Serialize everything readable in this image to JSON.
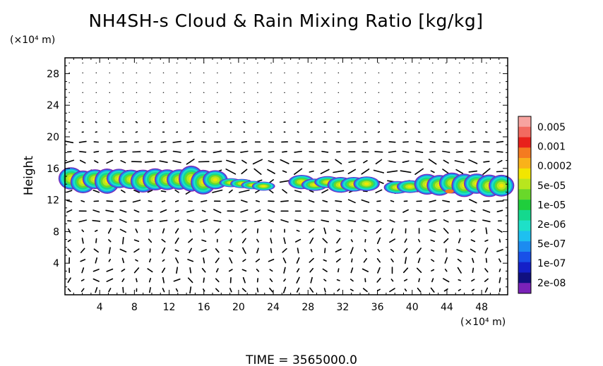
{
  "chart_data": {
    "type": "heatmap",
    "title": "NH4SH-s Cloud & Rain Mixing Ratio [kg/kg]",
    "ylabel": "Height",
    "x_unit": "(×10⁴ m)",
    "y_unit": "(×10⁴ m)",
    "xlim": [
      0,
      51
    ],
    "ylim": [
      0,
      30
    ],
    "x_ticks": [
      "4",
      "8",
      "12",
      "16",
      "20",
      "24",
      "28",
      "32",
      "36",
      "40",
      "44",
      "48"
    ],
    "x_tick_values": [
      4,
      8,
      12,
      16,
      20,
      24,
      28,
      32,
      36,
      40,
      44,
      48
    ],
    "y_ticks": [
      "4",
      "8",
      "12",
      "16",
      "20",
      "24",
      "28"
    ],
    "y_tick_values": [
      4,
      8,
      12,
      16,
      20,
      24,
      28
    ],
    "colorbar": {
      "labels": [
        "0.005",
        "0.001",
        "0.0002",
        "5e-05",
        "1e-05",
        "2e-06",
        "5e-07",
        "1e-07",
        "2e-08"
      ],
      "colors": [
        "#f7a4a0",
        "#f26a60",
        "#e8211b",
        "#f47b20",
        "#f9b21a",
        "#f2e600",
        "#b8e61e",
        "#69d82a",
        "#1fce3c",
        "#14d98e",
        "#1ee0c8",
        "#1ec0f0",
        "#1c8bf0",
        "#1850e8",
        "#1420c8",
        "#101080",
        "#7a22b8"
      ]
    },
    "cloud_band": {
      "height_range": [
        12,
        16.5
      ],
      "segments": [
        {
          "x": [
            0,
            18
          ],
          "y": [
            13.0,
            16.0
          ]
        },
        {
          "x": [
            18.5,
            23.5
          ],
          "y": [
            13.3,
            14.6
          ]
        },
        {
          "x": [
            26.5,
            35.5
          ],
          "y": [
            13.2,
            15.0
          ]
        },
        {
          "x": [
            37.5,
            40.5
          ],
          "y": [
            13.0,
            14.5
          ]
        },
        {
          "x": [
            41,
            51
          ],
          "y": [
            12.5,
            15.5
          ]
        }
      ]
    },
    "grid": false,
    "vector_field": true
  },
  "footer": {
    "time_label": "TIME = 3565000.0"
  }
}
